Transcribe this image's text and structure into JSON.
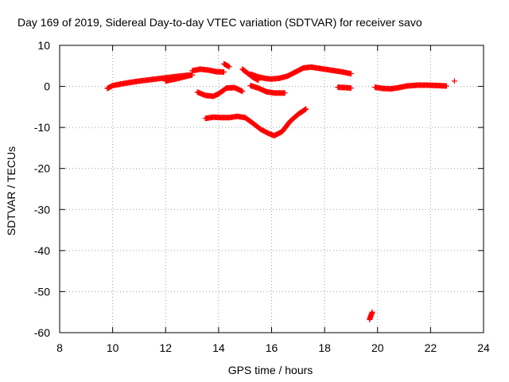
{
  "chart_data": {
    "type": "scatter",
    "title": "Day 169 of 2019, Sidereal Day-to-day VTEC variation (SDTVAR) for receiver savo",
    "xlabel": "GPS time / hours",
    "ylabel": "SDTVAR / TECUs",
    "xlim": [
      8,
      24
    ],
    "ylim": [
      -60,
      10
    ],
    "xticks": [
      8,
      10,
      12,
      14,
      16,
      18,
      20,
      22,
      24
    ],
    "yticks": [
      10,
      0,
      -10,
      -20,
      -30,
      -40,
      -50,
      -60
    ],
    "grid": true,
    "marker": "+",
    "series": [
      {
        "name": "SDTVAR",
        "color": "#ff0000",
        "segments": [
          {
            "x": [
              9.8,
              10.0,
              10.5,
              11.0,
              11.5,
              12.0,
              12.5,
              13.0
            ],
            "y": [
              -0.5,
              0.2,
              0.8,
              1.3,
              1.7,
              2.1,
              2.5,
              2.8
            ]
          },
          {
            "x": [
              12.0,
              12.5,
              13.0
            ],
            "y": [
              1.3,
              2.0,
              2.8
            ]
          },
          {
            "x": [
              13.0,
              13.3,
              13.6,
              13.9,
              14.2
            ],
            "y": [
              3.8,
              4.2,
              4.0,
              3.6,
              3.5
            ]
          },
          {
            "x": [
              14.2,
              14.4
            ],
            "y": [
              5.5,
              4.8
            ]
          },
          {
            "x": [
              14.9,
              15.1,
              15.3,
              15.5
            ],
            "y": [
              4.2,
              3.2,
              2.2,
              1.5
            ]
          },
          {
            "x": [
              15.2,
              15.5,
              15.8,
              16.0,
              16.3,
              16.6,
              16.9,
              17.2,
              17.5,
              17.8,
              18.2,
              18.6,
              19.0
            ],
            "y": [
              3.0,
              2.3,
              1.9,
              1.8,
              2.0,
              2.5,
              3.5,
              4.5,
              4.7,
              4.4,
              4.0,
              3.6,
              3.1
            ]
          },
          {
            "x": [
              13.2,
              13.5,
              13.8,
              14.0,
              14.3,
              14.6,
              14.9
            ],
            "y": [
              -1.4,
              -2.2,
              -2.4,
              -1.8,
              -0.4,
              -0.3,
              -1.2
            ]
          },
          {
            "x": [
              15.2,
              15.5,
              15.8,
              16.1,
              16.5
            ],
            "y": [
              0.2,
              -0.4,
              -1.3,
              -1.6,
              -1.6
            ]
          },
          {
            "x": [
              18.5,
              18.8,
              19.0
            ],
            "y": [
              -0.2,
              -0.3,
              -0.4
            ]
          },
          {
            "x": [
              19.9,
              20.2,
              20.5,
              20.8,
              21.1,
              21.5,
              21.9,
              22.3,
              22.6
            ],
            "y": [
              -0.2,
              -0.5,
              -0.6,
              -0.3,
              0.1,
              0.3,
              0.3,
              0.2,
              0.1
            ]
          },
          {
            "x": [
              22.9
            ],
            "y": [
              1.3
            ]
          },
          {
            "x": [
              13.5,
              13.8,
              14.1,
              14.4,
              14.7,
              15.0,
              15.3,
              15.6,
              15.9,
              16.1,
              16.4,
              16.7,
              17.0,
              17.3
            ],
            "y": [
              -7.8,
              -7.5,
              -7.6,
              -7.6,
              -7.3,
              -7.6,
              -9.0,
              -10.5,
              -11.5,
              -12.0,
              -11.0,
              -8.5,
              -6.8,
              -5.5
            ]
          },
          {
            "x": [
              19.7,
              19.75,
              19.8
            ],
            "y": [
              -56.8,
              -55.8,
              -55.0
            ]
          }
        ]
      }
    ]
  }
}
